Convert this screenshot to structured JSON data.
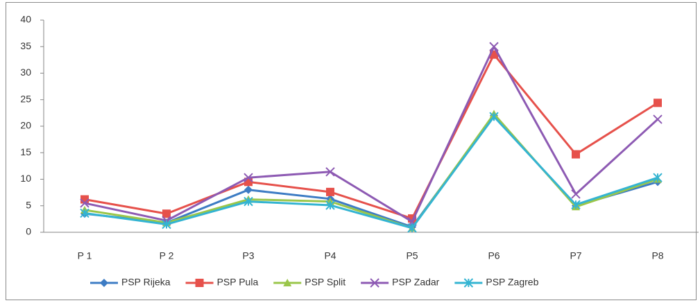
{
  "chart_data": {
    "type": "line",
    "categories": [
      "P 1",
      "P 2",
      "P3",
      "P4",
      "P5",
      "P6",
      "P7",
      "P8"
    ],
    "series": [
      {
        "name": "PSP Rijeka",
        "color": "#3d7cc4",
        "marker": "diamond",
        "values": [
          3.5,
          1.8,
          8,
          6.3,
          1,
          22,
          5,
          9.5
        ]
      },
      {
        "name": "PSP Pula",
        "color": "#e6514b",
        "marker": "square",
        "values": [
          6.2,
          3.5,
          9.5,
          7.6,
          2.6,
          33.5,
          14.7,
          24.4
        ]
      },
      {
        "name": "PSP Split",
        "color": "#9ac64a",
        "marker": "triangle",
        "values": [
          4.2,
          1.8,
          6.2,
          5.8,
          0.8,
          22.3,
          4.8,
          10
        ]
      },
      {
        "name": "PSP Zadar",
        "color": "#8d5ab3",
        "marker": "x",
        "values": [
          5.5,
          2.2,
          10.3,
          11.4,
          2,
          35,
          7.2,
          21.3
        ]
      },
      {
        "name": "PSP Zagreb",
        "color": "#34b4d2",
        "marker": "star",
        "values": [
          3.6,
          1.5,
          5.8,
          5.1,
          0.8,
          21.8,
          5.2,
          10.3
        ]
      }
    ],
    "ylim": [
      0,
      40
    ],
    "yticks": [
      0,
      5,
      10,
      15,
      20,
      25,
      30,
      35,
      40
    ],
    "legend": "bottom"
  }
}
